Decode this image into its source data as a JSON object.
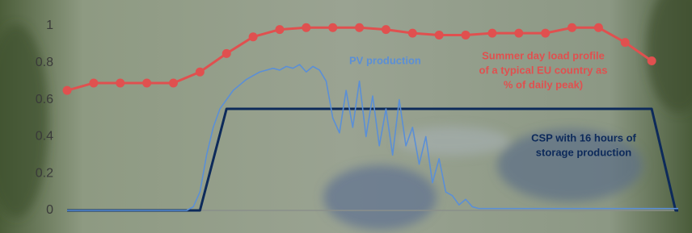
{
  "chart_data": {
    "type": "line",
    "ylim": [
      0,
      1
    ],
    "yticks": [
      0,
      0.2,
      0.4,
      0.6,
      0.8,
      1
    ],
    "xlim": [
      0,
      23
    ],
    "series": [
      {
        "color": "#e0504f",
        "markers": true,
        "x": [
          0,
          1,
          2,
          3,
          4,
          5,
          6,
          7,
          8,
          9,
          10,
          11,
          12,
          13,
          14,
          15,
          16,
          17,
          18,
          19,
          20,
          21,
          22
        ],
        "values": [
          0.65,
          0.69,
          0.69,
          0.69,
          0.69,
          0.75,
          0.85,
          0.94,
          0.98,
          0.99,
          0.99,
          0.99,
          0.98,
          0.96,
          0.95,
          0.95,
          0.96,
          0.96,
          0.96,
          0.99,
          0.99,
          0.91,
          0.81
        ]
      },
      {
        "color": "#5b8fd6",
        "markers": false,
        "x": [
          0,
          4.5,
          4.75,
          5,
          5.25,
          5.5,
          5.75,
          6,
          6.25,
          6.5,
          6.75,
          7,
          7.25,
          7.5,
          7.75,
          8,
          8.25,
          8.5,
          8.75,
          9,
          9.25,
          9.5,
          9.75,
          10,
          10.25,
          10.5,
          10.75,
          11,
          11.25,
          11.5,
          11.75,
          12,
          12.25,
          12.5,
          12.75,
          13,
          13.25,
          13.5,
          13.75,
          14,
          14.25,
          14.5,
          14.75,
          15,
          15.25,
          15.5,
          23
        ],
        "values": [
          0,
          0,
          0.02,
          0.1,
          0.3,
          0.45,
          0.55,
          0.6,
          0.65,
          0.68,
          0.71,
          0.73,
          0.75,
          0.76,
          0.77,
          0.76,
          0.78,
          0.77,
          0.79,
          0.75,
          0.78,
          0.76,
          0.7,
          0.5,
          0.42,
          0.65,
          0.45,
          0.7,
          0.4,
          0.62,
          0.35,
          0.55,
          0.3,
          0.6,
          0.35,
          0.45,
          0.25,
          0.4,
          0.15,
          0.28,
          0.1,
          0.08,
          0.03,
          0.06,
          0.02,
          0.01,
          0.01
        ]
      },
      {
        "color": "#0d2a5a",
        "markers": false,
        "x": [
          0,
          5,
          6,
          22,
          22.9,
          23
        ],
        "values": [
          0,
          0,
          0.55,
          0.55,
          0,
          0
        ]
      }
    ],
    "annotations": [
      {
        "color": "#5b8fd6",
        "lines": [
          "PV production"
        ]
      },
      {
        "color": "#e0504f",
        "lines": [
          "Summer day load profile",
          "of a typical EU country as",
          "% of daily peak)"
        ]
      },
      {
        "color": "#0d2a5a",
        "lines": [
          "CSP with 16 hours of",
          "storage production"
        ]
      }
    ]
  }
}
